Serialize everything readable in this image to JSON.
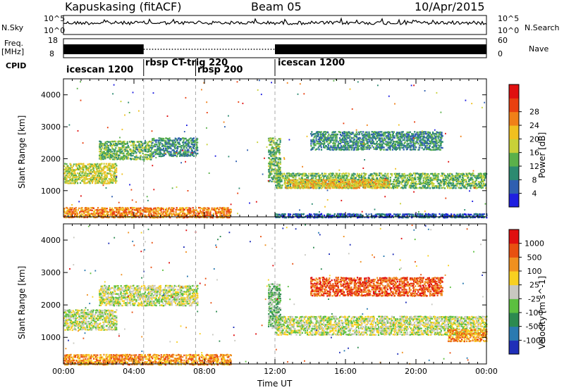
{
  "header": {
    "station": "Kapuskasing (fitACF)",
    "beam": "Beam 05",
    "date": "10/Apr/2015"
  },
  "side_labels": {
    "nsky": "N.Sky",
    "freq_top": "Freq.",
    "freq_unit": "[MHz]",
    "cpid": "CPID",
    "nsearch": "N.Search",
    "nave": "Nave",
    "nsky_tick_top": "10^5",
    "nsky_tick_bottom": "10^0",
    "nsearch_tick_top": "10^5",
    "nsearch_tick_bottom": "10^0",
    "freq_tick_top": "18",
    "freq_tick_bottom": "8",
    "nave_tick_top": "60",
    "nave_tick_bottom": "0"
  },
  "modes": [
    {
      "label": "icescan 1200",
      "start_h": 0.0
    },
    {
      "label": "rbsp CT-trig 220",
      "start_h": 4.55
    },
    {
      "label": "rbsp 200",
      "start_h": 7.5
    },
    {
      "label": "icescan 1200",
      "start_h": 12.0
    }
  ],
  "chart_data": [
    {
      "type": "heatmap",
      "title": "",
      "ylabel": "Slant Range [km]",
      "xlabel": "",
      "x_range_hours": [
        0,
        24
      ],
      "ylim": [
        180,
        4500
      ],
      "y_ticks": [
        "1000",
        "2000",
        "3000",
        "4000"
      ],
      "colorbar": {
        "label": "Power [dB]",
        "ticks": [
          "4",
          "8",
          "12",
          "16",
          "20",
          "24",
          "28"
        ],
        "colors": [
          "#1f1fe0",
          "#2f5fb0",
          "#2c8a70",
          "#5bb04a",
          "#c8d038",
          "#f0c020",
          "#f08018",
          "#e84010",
          "#e01010"
        ]
      },
      "bands": [
        {
          "h0": 0.0,
          "h1": 3.0,
          "r0": 1250,
          "r1": 1900,
          "level": 4,
          "note": "rising band"
        },
        {
          "h0": 2.0,
          "h1": 5.0,
          "r0": 2000,
          "r1": 2600,
          "level": 3
        },
        {
          "h0": 5.0,
          "h1": 7.6,
          "r0": 2100,
          "r1": 2700,
          "level": 2
        },
        {
          "h0": 0.0,
          "h1": 9.5,
          "r0": 180,
          "r1": 520,
          "level": 6
        },
        {
          "h0": 11.6,
          "h1": 12.3,
          "r0": 1300,
          "r1": 2700,
          "level": 3
        },
        {
          "h0": 12.0,
          "h1": 24.0,
          "r0": 1100,
          "r1": 1600,
          "level": 3
        },
        {
          "h0": 12.5,
          "h1": 18.5,
          "r0": 1100,
          "r1": 1400,
          "level": 5
        },
        {
          "h0": 14.0,
          "h1": 21.5,
          "r0": 2300,
          "r1": 2900,
          "level": 2
        },
        {
          "h0": 12.0,
          "h1": 24.0,
          "r0": 180,
          "r1": 320,
          "level": 1
        }
      ]
    },
    {
      "type": "heatmap",
      "title": "",
      "ylabel": "Slant Range [km]",
      "xlabel": "Time UT",
      "x_range_hours": [
        0,
        24
      ],
      "x_ticks": [
        "00:00",
        "04:00",
        "08:00",
        "12:00",
        "16:00",
        "20:00",
        "00:00"
      ],
      "ylim": [
        180,
        4500
      ],
      "y_ticks": [
        "1000",
        "2000",
        "3000",
        "4000"
      ],
      "colorbar": {
        "label": "Velocity [m s^-1]",
        "ticks": [
          "1000",
          "500",
          "100",
          "25",
          "-25",
          "-100",
          "-500",
          "-1000"
        ],
        "colors": [
          "#1f2fb8",
          "#2a7ab0",
          "#2c8a50",
          "#5cc040",
          "#c8c8c0",
          "#f8d020",
          "#f09020",
          "#e85010",
          "#e01010"
        ]
      },
      "bands": [
        {
          "h0": 0.0,
          "h1": 3.0,
          "r0": 1250,
          "r1": 1900,
          "vel": 4
        },
        {
          "h0": 2.0,
          "h1": 7.6,
          "r0": 2000,
          "r1": 2650,
          "vel": 4
        },
        {
          "h0": 0.0,
          "h1": 9.5,
          "r0": 180,
          "r1": 520,
          "vel": 6
        },
        {
          "h0": 11.6,
          "h1": 12.3,
          "r0": 1300,
          "r1": 2700,
          "vel": 3
        },
        {
          "h0": 12.0,
          "h1": 24.0,
          "r0": 1100,
          "r1": 1700,
          "vel": 4
        },
        {
          "h0": 14.0,
          "h1": 21.5,
          "r0": 2300,
          "r1": 2900,
          "vel": 7
        },
        {
          "h0": 21.8,
          "h1": 24.0,
          "r0": 900,
          "r1": 1300,
          "vel": 6
        }
      ]
    }
  ]
}
